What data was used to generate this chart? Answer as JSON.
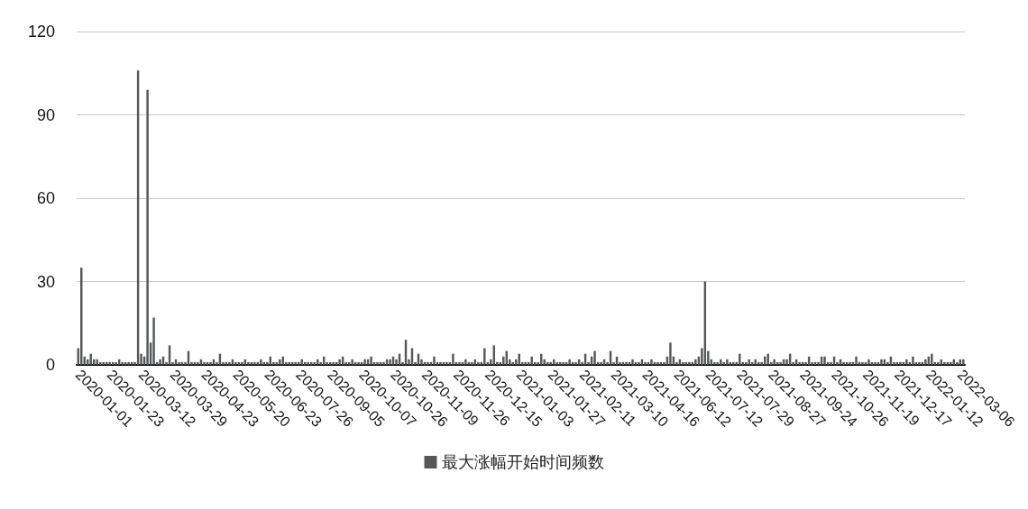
{
  "chart_data": {
    "type": "bar",
    "categories": [
      "2020-01-01",
      null,
      null,
      null,
      null,
      null,
      null,
      null,
      null,
      null,
      "2020-01-23",
      null,
      null,
      null,
      null,
      null,
      null,
      null,
      null,
      null,
      "2020-03-12",
      null,
      null,
      null,
      null,
      null,
      null,
      null,
      null,
      null,
      "2020-03-29",
      null,
      null,
      null,
      null,
      null,
      null,
      null,
      null,
      null,
      "2020-04-23",
      null,
      null,
      null,
      null,
      null,
      null,
      null,
      null,
      null,
      "2020-05-20",
      null,
      null,
      null,
      null,
      null,
      null,
      null,
      null,
      null,
      "2020-06-23",
      null,
      null,
      null,
      null,
      null,
      null,
      null,
      null,
      null,
      "2020-07-26",
      null,
      null,
      null,
      null,
      null,
      null,
      null,
      null,
      null,
      "2020-09-05",
      null,
      null,
      null,
      null,
      null,
      null,
      null,
      null,
      null,
      "2020-10-07",
      null,
      null,
      null,
      null,
      null,
      null,
      null,
      null,
      null,
      "2020-10-26",
      null,
      null,
      null,
      null,
      null,
      null,
      null,
      null,
      null,
      "2020-11-09",
      null,
      null,
      null,
      null,
      null,
      null,
      null,
      null,
      null,
      "2020-11-26",
      null,
      null,
      null,
      null,
      null,
      null,
      null,
      null,
      null,
      "2020-12-15",
      null,
      null,
      null,
      null,
      null,
      null,
      null,
      null,
      null,
      "2021-01-03",
      null,
      null,
      null,
      null,
      null,
      null,
      null,
      null,
      null,
      "2021-01-27",
      null,
      null,
      null,
      null,
      null,
      null,
      null,
      null,
      null,
      "2021-02-11",
      null,
      null,
      null,
      null,
      null,
      null,
      null,
      null,
      null,
      "2021-03-10",
      null,
      null,
      null,
      null,
      null,
      null,
      null,
      null,
      null,
      "2021-04-16",
      null,
      null,
      null,
      null,
      null,
      null,
      null,
      null,
      null,
      "2021-06-12",
      null,
      null,
      null,
      null,
      null,
      null,
      null,
      null,
      null,
      "2021-07-12",
      null,
      null,
      null,
      null,
      null,
      null,
      null,
      null,
      null,
      "2021-07-29",
      null,
      null,
      null,
      null,
      null,
      null,
      null,
      null,
      null,
      "2021-08-27",
      null,
      null,
      null,
      null,
      null,
      null,
      null,
      null,
      null,
      "2021-09-24",
      null,
      null,
      null,
      null,
      null,
      null,
      null,
      null,
      null,
      "2021-10-26",
      null,
      null,
      null,
      null,
      null,
      null,
      null,
      null,
      null,
      "2021-11-19",
      null,
      null,
      null,
      null,
      null,
      null,
      null,
      null,
      null,
      "2021-12-17",
      null,
      null,
      null,
      null,
      null,
      null,
      null,
      null,
      null,
      "2022-01-12",
      null,
      null,
      null,
      null,
      null,
      null,
      null,
      null,
      null,
      "2022-03-06",
      null
    ],
    "series": [
      {
        "name": "最大涨幅开始时间频数",
        "color": "#555759",
        "values": [
          6,
          35,
          3,
          2,
          4,
          2,
          2,
          1,
          1,
          1,
          1,
          1,
          1,
          2,
          1,
          1,
          1,
          1,
          1,
          106,
          4,
          3,
          99,
          8,
          17,
          1,
          2,
          3,
          1,
          7,
          1,
          2,
          1,
          1,
          1,
          5,
          1,
          1,
          1,
          2,
          1,
          1,
          1,
          2,
          1,
          4,
          1,
          1,
          1,
          2,
          1,
          1,
          1,
          2,
          1,
          1,
          1,
          1,
          2,
          1,
          1,
          3,
          1,
          1,
          2,
          3,
          1,
          1,
          1,
          1,
          1,
          2,
          1,
          1,
          1,
          1,
          2,
          1,
          3,
          1,
          1,
          1,
          1,
          2,
          3,
          1,
          1,
          2,
          1,
          1,
          1,
          2,
          2,
          3,
          1,
          1,
          1,
          1,
          2,
          2,
          3,
          2,
          4,
          1,
          9,
          2,
          6,
          1,
          4,
          2,
          1,
          1,
          1,
          3,
          1,
          1,
          1,
          1,
          1,
          4,
          1,
          1,
          1,
          2,
          1,
          1,
          2,
          1,
          1,
          6,
          1,
          2,
          7,
          1,
          1,
          3,
          5,
          2,
          1,
          2,
          4,
          1,
          1,
          1,
          3,
          1,
          1,
          4,
          2,
          1,
          1,
          2,
          1,
          1,
          1,
          1,
          2,
          1,
          1,
          2,
          1,
          4,
          1,
          3,
          5,
          1,
          1,
          2,
          1,
          5,
          1,
          3,
          1,
          1,
          1,
          1,
          2,
          1,
          1,
          2,
          1,
          1,
          2,
          1,
          1,
          1,
          1,
          3,
          8,
          3,
          1,
          2,
          1,
          1,
          1,
          1,
          2,
          3,
          6,
          30,
          5,
          2,
          1,
          1,
          2,
          1,
          2,
          1,
          1,
          1,
          4,
          1,
          1,
          2,
          1,
          2,
          1,
          1,
          3,
          4,
          1,
          2,
          1,
          1,
          2,
          2,
          4,
          1,
          2,
          1,
          1,
          1,
          3,
          1,
          1,
          1,
          3,
          3,
          1,
          1,
          3,
          1,
          2,
          1,
          1,
          1,
          1,
          3,
          1,
          1,
          1,
          2,
          1,
          1,
          1,
          2,
          2,
          1,
          3,
          1,
          1,
          1,
          1,
          2,
          1,
          3,
          1,
          1,
          1,
          2,
          3,
          4,
          1,
          1,
          2,
          1,
          1,
          1,
          2,
          1,
          2,
          2
        ]
      }
    ],
    "ylim": [
      0,
      120
    ],
    "yticks": [
      0,
      30,
      60,
      90,
      120
    ],
    "grid": "y",
    "legend": "bottom"
  }
}
